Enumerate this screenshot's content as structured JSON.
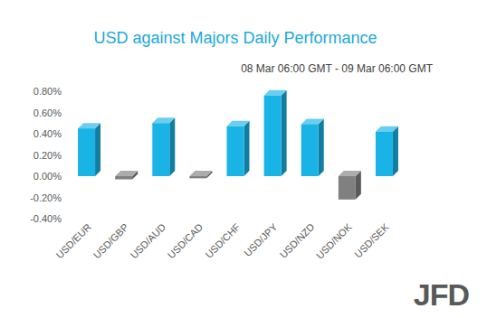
{
  "chart_data": {
    "type": "bar",
    "title": "USD against Majors Daily Performance",
    "subtitle": "08 Mar 06:00 GMT - 09 Mar 06:00 GMT",
    "annotations": [
      "JFD"
    ],
    "categories": [
      "USD/EUR",
      "USD/GBP",
      "USD/AUD",
      "USD/CAD",
      "USD/CHF",
      "USD/JPY",
      "USD/NZD",
      "USD/NOK",
      "USD/SEK"
    ],
    "values": [
      0.45,
      -0.03,
      0.5,
      -0.02,
      0.47,
      0.76,
      0.49,
      -0.22,
      0.42
    ],
    "colors": [
      "#1ab3e6",
      "#808080",
      "#1ab3e6",
      "#808080",
      "#1ab3e6",
      "#1ab3e6",
      "#1ab3e6",
      "#808080",
      "#1ab3e6"
    ],
    "ylim": [
      -0.4,
      0.8
    ],
    "yticks": [
      {
        "value": -0.4,
        "label": "-0.40%"
      },
      {
        "value": -0.2,
        "label": "-0.20%"
      },
      {
        "value": 0,
        "label": "0.00%"
      },
      {
        "value": 0.2,
        "label": "0.20%"
      },
      {
        "value": 0.4,
        "label": "0.40%"
      },
      {
        "value": 0.6,
        "label": "0.60%"
      },
      {
        "value": 0.8,
        "label": "0.80%"
      }
    ],
    "grid": false,
    "data_labels": false
  }
}
